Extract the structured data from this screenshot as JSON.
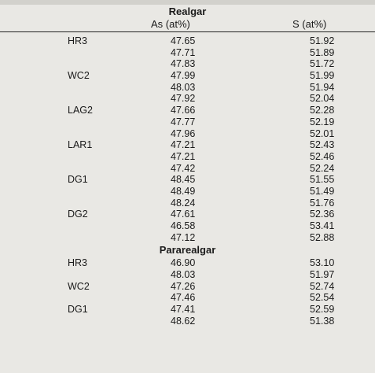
{
  "title": "Realgar",
  "columns": {
    "as": "As (at%)",
    "s": "S (at%)"
  },
  "realgar_rows": [
    {
      "sample": "HR3",
      "as": "47.65",
      "s": "51.92"
    },
    {
      "sample": "",
      "as": "47.71",
      "s": "51.89"
    },
    {
      "sample": "",
      "as": "47.83",
      "s": "51.72"
    },
    {
      "sample": "WC2",
      "as": "47.99",
      "s": "51.99"
    },
    {
      "sample": "",
      "as": "48.03",
      "s": "51.94"
    },
    {
      "sample": "",
      "as": "47.92",
      "s": "52.04"
    },
    {
      "sample": "LAG2",
      "as": "47.66",
      "s": "52.28"
    },
    {
      "sample": "",
      "as": "47.77",
      "s": "52.19"
    },
    {
      "sample": "",
      "as": "47.96",
      "s": "52.01"
    },
    {
      "sample": "LAR1",
      "as": "47.21",
      "s": "52.43"
    },
    {
      "sample": "",
      "as": "47.21",
      "s": "52.46"
    },
    {
      "sample": "",
      "as": "47.42",
      "s": "52.24"
    },
    {
      "sample": "DG1",
      "as": "48.45",
      "s": "51.55"
    },
    {
      "sample": "",
      "as": "48.49",
      "s": "51.49"
    },
    {
      "sample": "",
      "as": "48.24",
      "s": "51.76"
    },
    {
      "sample": "DG2",
      "as": "47.61",
      "s": "52.36"
    },
    {
      "sample": "",
      "as": "46.58",
      "s": "53.41"
    },
    {
      "sample": "",
      "as": "47.12",
      "s": "52.88"
    }
  ],
  "pararealgar_title": "Pararealgar",
  "pararealgar_rows": [
    {
      "sample": "HR3",
      "as": "46.90",
      "s": "53.10"
    },
    {
      "sample": "",
      "as": "48.03",
      "s": "51.97"
    },
    {
      "sample": "WC2",
      "as": "47.26",
      "s": "52.74"
    },
    {
      "sample": "",
      "as": "47.46",
      "s": "52.54"
    },
    {
      "sample": "DG1",
      "as": "47.41",
      "s": "52.59"
    },
    {
      "sample": "",
      "as": "48.62",
      "s": "51.38"
    }
  ]
}
